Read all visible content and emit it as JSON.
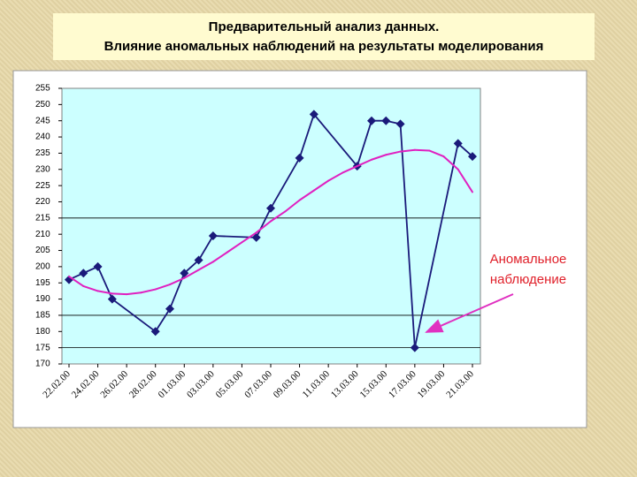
{
  "title": [
    "Предварительный анализ данных.",
    "Влияние аномальных наблюдений на результаты моделирования"
  ],
  "chart_data": {
    "type": "line",
    "annotation": [
      "Аномальное",
      "наблюдение"
    ],
    "categories": [
      "22.02.00",
      null,
      "24.02.00",
      null,
      "26.02.00",
      null,
      "28.02.00",
      null,
      "01.03.00",
      null,
      "03.03.00",
      null,
      "05.03.00",
      null,
      "07.03.00",
      null,
      "09.03.00",
      null,
      "11.03.00",
      null,
      "13.03.00",
      null,
      "15.03.00",
      null,
      "17.03.00",
      null,
      "19.03.00",
      null,
      "21.03.00"
    ],
    "series": [
      {
        "color": "#1a1a7a",
        "marker": "diamond",
        "values": [
          196,
          198,
          200,
          190,
          null,
          null,
          180,
          187,
          198,
          202,
          209.5,
          null,
          null,
          209,
          218,
          null,
          233.5,
          247,
          null,
          null,
          231,
          245,
          245,
          244,
          175,
          null,
          null,
          238,
          234
        ]
      },
      {
        "color": "#e020c0",
        "marker": "none",
        "values": [
          197,
          194,
          192.5,
          191.7,
          191.5,
          192,
          193,
          194.5,
          196.5,
          199,
          201.5,
          204.5,
          207.5,
          210.5,
          214,
          217,
          220.5,
          223.5,
          226.5,
          229,
          231,
          233,
          234.5,
          235.5,
          236,
          235.8,
          234,
          230,
          223
        ]
      }
    ],
    "ylim": [
      170,
      255
    ],
    "yticks": [
      170,
      175,
      180,
      185,
      190,
      195,
      200,
      205,
      210,
      215,
      220,
      225,
      230,
      235,
      240,
      245,
      250,
      255
    ],
    "grid_values": [
      175,
      185,
      215
    ]
  }
}
